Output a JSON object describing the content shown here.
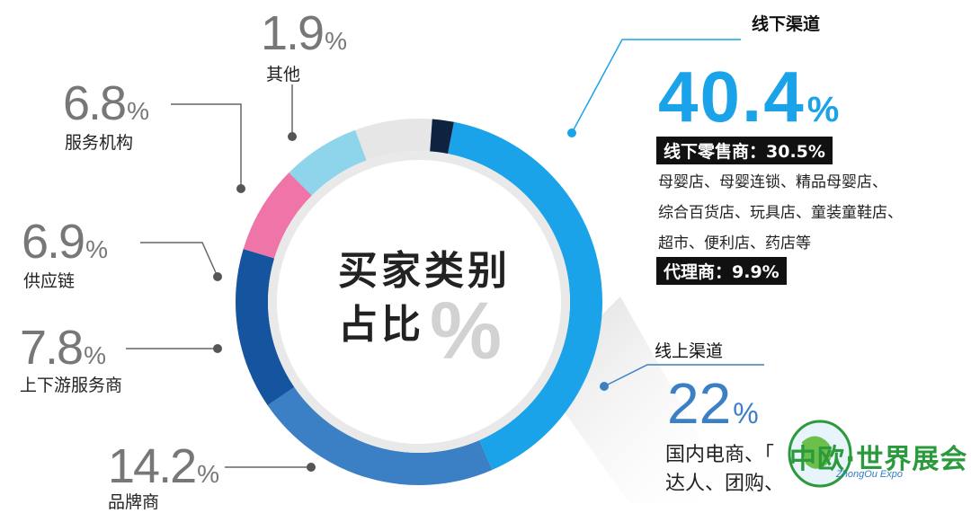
{
  "chart_data": {
    "type": "pie",
    "title": "买家类别占比",
    "title_line1": "买家类别",
    "title_line2": "占比",
    "title_symbol": "%",
    "slices": [
      {
        "name": "线下渠道",
        "value": 40.4,
        "color": "#1aa3e8"
      },
      {
        "name": "线上渠道",
        "value": 22,
        "color": "#3b7fc4"
      },
      {
        "name": "品牌商",
        "value": 14.2,
        "color": "#15549e"
      },
      {
        "name": "上下游服务商",
        "value": 7.8,
        "color": "#ef74a7"
      },
      {
        "name": "供应链",
        "value": 6.9,
        "color": "#8ed4ea"
      },
      {
        "name": "服务机构",
        "value": 6.8,
        "color": "#e6e6e6"
      },
      {
        "name": "其他",
        "value": 1.9,
        "color": "#0d2340"
      }
    ]
  },
  "labels": {
    "other": {
      "num": "1.9",
      "sym": "%",
      "name": "其他"
    },
    "service": {
      "num": "6.8",
      "sym": "%",
      "name": "服务机构"
    },
    "supply": {
      "num": "6.9",
      "sym": "%",
      "name": "供应链"
    },
    "updown": {
      "num": "7.8",
      "sym": "%",
      "name": "上下游服务商"
    },
    "brand": {
      "num": "14.2",
      "sym": "%",
      "name": "品牌商"
    }
  },
  "offline": {
    "title": "线下渠道",
    "num": "40.4",
    "sym": "%",
    "retail_label": "线下零售商：30.5%",
    "retail_lines": [
      "母婴店、母婴连锁、精品母婴店、",
      "综合百货店、玩具店、童装童鞋店、",
      "超市、便利店、药店等"
    ],
    "agent_label": "代理商：9.9%"
  },
  "online": {
    "title": "线上渠道",
    "num": "22",
    "sym": "%",
    "lines": [
      "国内电商、「",
      "达人、团购、"
    ]
  },
  "logo": {
    "text": "中欧·世界展会",
    "sub": "ZhongOu Expo"
  }
}
